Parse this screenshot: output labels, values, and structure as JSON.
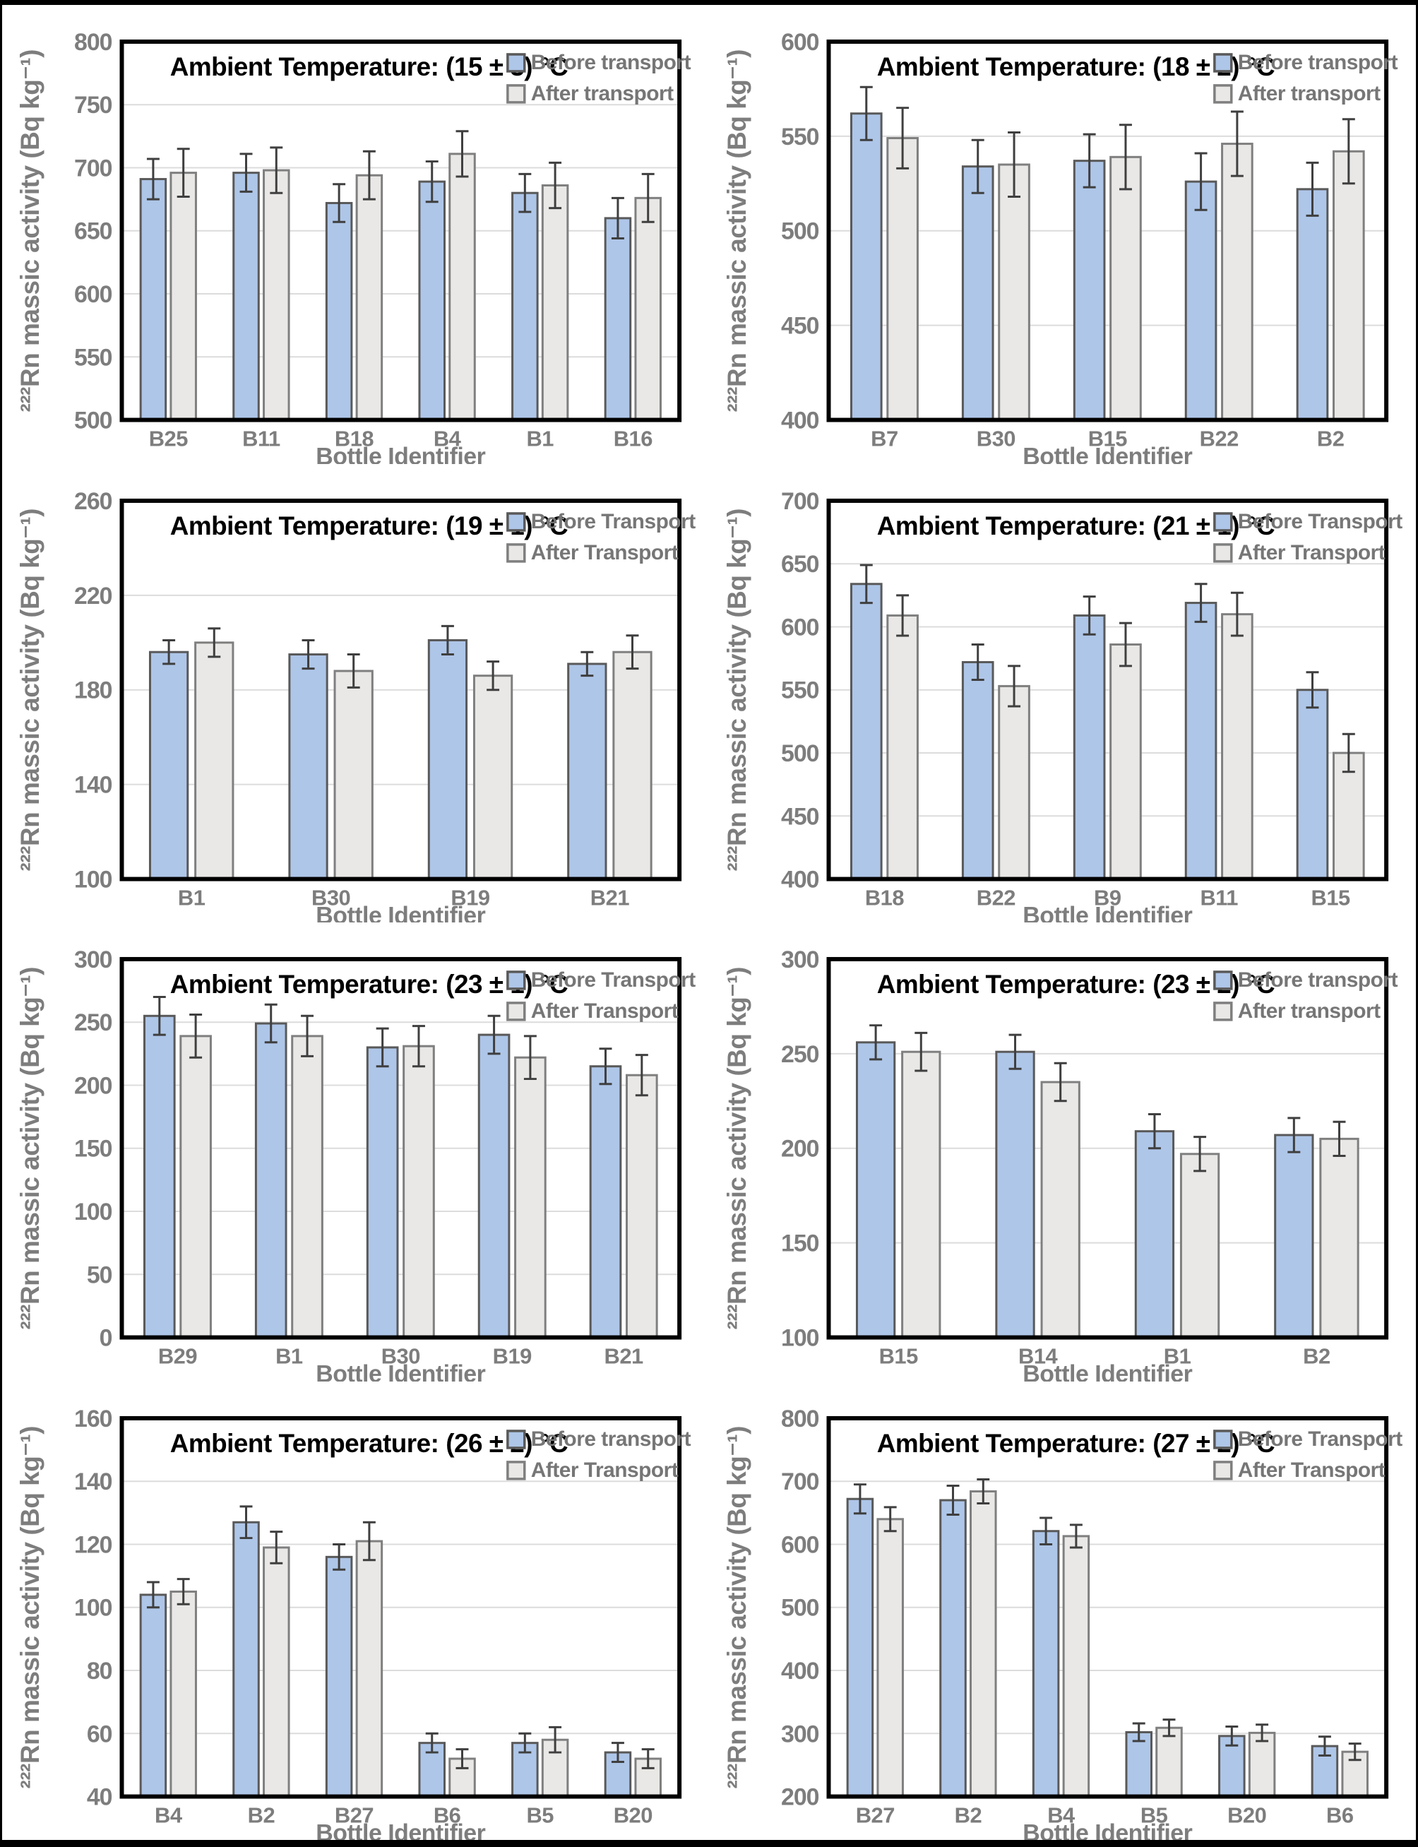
{
  "figure": {
    "description": "Radon-222 massic activity in water bottles before and after transport at eight ambient temperatures",
    "x_axis_label": "Bottle Identifier",
    "y_axis_label": "²²²Rn massic activity (Bq kg⁻¹)"
  },
  "colors": {
    "before_fill": "#aec6e8",
    "before_stroke": "#595959",
    "after_fill": "#e9e8e6",
    "after_stroke": "#7f7f7f",
    "error_bar": "#3f3f3f",
    "gridline": "#dcdcdc",
    "plot_border": "#000000",
    "title_text": "#000000",
    "axis_text": "#7d7d7d",
    "legend_text": "#767676",
    "page_frame": "#000000"
  },
  "chart_data": [
    {
      "type": "bar",
      "title": "Ambient Temperature: (15 ± 3) °C",
      "xlabel": "Bottle Identifier",
      "ylabel": "²²²Rn massic activity (Bq kg⁻¹)",
      "ylim": [
        500,
        800
      ],
      "ystep": 50,
      "grid": true,
      "legend_position": "top-right",
      "categories": [
        "B25",
        "B11",
        "B18",
        "B4",
        "B1",
        "B16"
      ],
      "series": [
        {
          "name": "Before transport",
          "values": [
            691,
            696,
            672,
            689,
            680,
            660
          ],
          "errors": [
            16,
            15,
            15,
            16,
            15,
            16
          ]
        },
        {
          "name": "After transport",
          "values": [
            696,
            698,
            694,
            711,
            686,
            676
          ],
          "errors": [
            19,
            18,
            19,
            18,
            18,
            19
          ]
        }
      ]
    },
    {
      "type": "bar",
      "title": "Ambient Temperature: (18 ± 2) °C",
      "xlabel": "Bottle Identifier",
      "ylabel": "²²²Rn massic activity (Bq kg⁻¹)",
      "ylim": [
        400,
        600
      ],
      "ystep": 50,
      "grid": true,
      "legend_position": "top-right",
      "categories": [
        "B7",
        "B30",
        "B15",
        "B22",
        "B2"
      ],
      "series": [
        {
          "name": "Before transport",
          "values": [
            562,
            534,
            537,
            526,
            522
          ],
          "errors": [
            14,
            14,
            14,
            15,
            14
          ]
        },
        {
          "name": "After transport",
          "values": [
            549,
            535,
            539,
            546,
            542
          ],
          "errors": [
            16,
            17,
            17,
            17,
            17
          ]
        }
      ]
    },
    {
      "type": "bar",
      "title": "Ambient Temperature: (19 ± 1) °C",
      "xlabel": "Bottle Identifier",
      "ylabel": "²²²Rn massic activity (Bq kg⁻¹)",
      "ylim": [
        100,
        260
      ],
      "ystep": 40,
      "grid": true,
      "legend_position": "top-right",
      "categories": [
        "B1",
        "B30",
        "B19",
        "B21"
      ],
      "series": [
        {
          "name": "Before Transport",
          "values": [
            196,
            195,
            201,
            191
          ],
          "errors": [
            5,
            6,
            6,
            5
          ]
        },
        {
          "name": "After Transport",
          "values": [
            200,
            188,
            186,
            196
          ],
          "errors": [
            6,
            7,
            6,
            7
          ]
        }
      ]
    },
    {
      "type": "bar",
      "title": "Ambient Temperature: (21 ± 1) °C",
      "xlabel": "Bottle Identifier",
      "ylabel": "²²²Rn massic activity (Bq kg⁻¹)",
      "ylim": [
        400,
        700
      ],
      "ystep": 50,
      "grid": true,
      "legend_position": "top-right",
      "categories": [
        "B18",
        "B22",
        "B9",
        "B11",
        "B15"
      ],
      "series": [
        {
          "name": "Before Transport",
          "values": [
            634,
            572,
            609,
            619,
            550
          ],
          "errors": [
            15,
            14,
            15,
            15,
            14
          ]
        },
        {
          "name": "After Transport",
          "values": [
            609,
            553,
            586,
            610,
            500
          ],
          "errors": [
            16,
            16,
            17,
            17,
            15
          ]
        }
      ]
    },
    {
      "type": "bar",
      "title": "Ambient Temperature: (23 ± 1) °C",
      "xlabel": "Bottle Identifier",
      "ylabel": "²²²Rn massic activity (Bq kg⁻¹)",
      "ylim": [
        0,
        300
      ],
      "ystep": 50,
      "grid": true,
      "legend_position": "top-right",
      "categories": [
        "B29",
        "B1",
        "B30",
        "B19",
        "B21"
      ],
      "series": [
        {
          "name": "Before Transport",
          "values": [
            255,
            249,
            230,
            240,
            215
          ],
          "errors": [
            15,
            15,
            15,
            15,
            14
          ]
        },
        {
          "name": "After Transport",
          "values": [
            239,
            239,
            231,
            222,
            208
          ],
          "errors": [
            17,
            16,
            16,
            17,
            16
          ]
        }
      ]
    },
    {
      "type": "bar",
      "title": "Ambient Temperature: (23 ± 2) °C",
      "xlabel": "Bottle Identifier",
      "ylabel": "²²²Rn massic activity (Bq kg⁻¹)",
      "ylim": [
        100,
        300
      ],
      "ystep": 50,
      "grid": true,
      "legend_position": "top-right",
      "categories": [
        "B15",
        "B14",
        "B1",
        "B2"
      ],
      "series": [
        {
          "name": "Before transport",
          "values": [
            256,
            251,
            209,
            207
          ],
          "errors": [
            9,
            9,
            9,
            9
          ]
        },
        {
          "name": "After transport",
          "values": [
            251,
            235,
            197,
            205
          ],
          "errors": [
            10,
            10,
            9,
            9
          ]
        }
      ]
    },
    {
      "type": "bar",
      "title": "Ambient Temperature: (26 ± 2) °C",
      "xlabel": "Bottle Identifier",
      "ylabel": "²²²Rn massic activity (Bq kg⁻¹)",
      "ylim": [
        40,
        160
      ],
      "ystep": 20,
      "grid": true,
      "legend_position": "top-right",
      "categories": [
        "B4",
        "B2",
        "B27",
        "B6",
        "B5",
        "B20"
      ],
      "series": [
        {
          "name": "Before transport",
          "values": [
            104,
            127,
            116,
            57,
            57,
            54
          ],
          "errors": [
            4,
            5,
            4,
            3,
            3,
            3
          ]
        },
        {
          "name": "After Transport",
          "values": [
            105,
            119,
            121,
            52,
            58,
            52
          ],
          "errors": [
            4,
            5,
            6,
            3,
            4,
            3
          ]
        }
      ]
    },
    {
      "type": "bar",
      "title": "Ambient Temperature: (27 ± 2) °C",
      "xlabel": "Bottle Identifier",
      "ylabel": "²²²Rn massic activity (Bq kg⁻¹)",
      "ylim": [
        200,
        800
      ],
      "ystep": 100,
      "grid": true,
      "legend_position": "top-right",
      "categories": [
        "B27",
        "B2",
        "B4",
        "B5",
        "B20",
        "B6"
      ],
      "series": [
        {
          "name": "Before Transport",
          "values": [
            672,
            670,
            621,
            302,
            296,
            280
          ],
          "errors": [
            23,
            23,
            21,
            14,
            15,
            15
          ]
        },
        {
          "name": "After Transport",
          "values": [
            640,
            684,
            613,
            309,
            301,
            271
          ],
          "errors": [
            19,
            19,
            18,
            13,
            13,
            13
          ]
        }
      ]
    }
  ]
}
